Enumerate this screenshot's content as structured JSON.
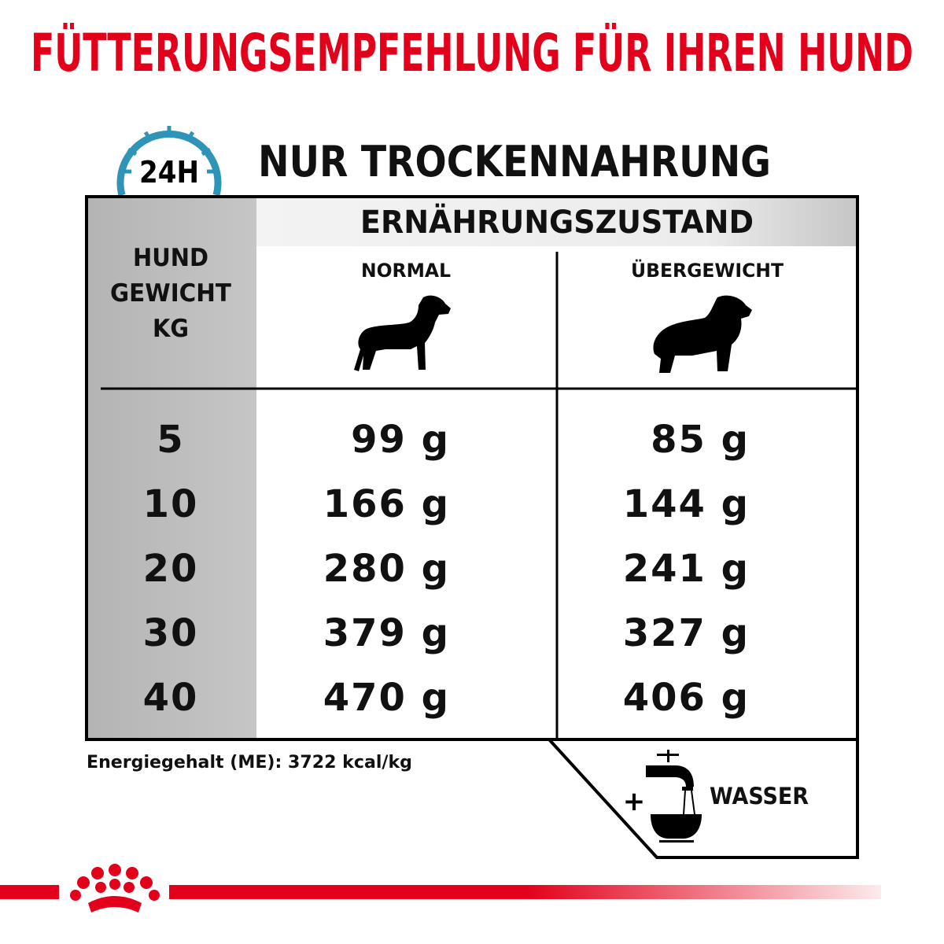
{
  "title": "FÜTTERUNGSEMPFEHLUNG FÜR IHREN HUND",
  "icon_24h": {
    "label": "24H",
    "color": "#2e95b8"
  },
  "subtitle": "NUR TROCKENNAHRUNG",
  "table": {
    "group_header": "ERNÄHRUNGSZUSTAND",
    "weight_header": [
      "HUND",
      "GEWICHT",
      "KG"
    ],
    "columns": [
      {
        "label": "NORMAL",
        "icon": "normal-dog-icon"
      },
      {
        "label": "ÜBERGEWICHT",
        "icon": "overweight-dog-icon"
      }
    ],
    "rows": [
      {
        "weight": "5",
        "normal": "99 g",
        "overweight": "85 g"
      },
      {
        "weight": "10",
        "normal": "166 g",
        "overweight": "144 g"
      },
      {
        "weight": "20",
        "normal": "280 g",
        "overweight": "241 g"
      },
      {
        "weight": "30",
        "normal": "379 g",
        "overweight": "327 g"
      },
      {
        "weight": "40",
        "normal": "470 g",
        "overweight": "406 g"
      }
    ]
  },
  "energy_note": "Energiegehalt (ME): 3722 kcal/kg",
  "water": {
    "plus": "+",
    "label": "WASSER",
    "icon": "water-tap-bowl-icon"
  },
  "brand_color": "#e2001a",
  "logo": {
    "icon": "royal-canin-crown-logo"
  }
}
